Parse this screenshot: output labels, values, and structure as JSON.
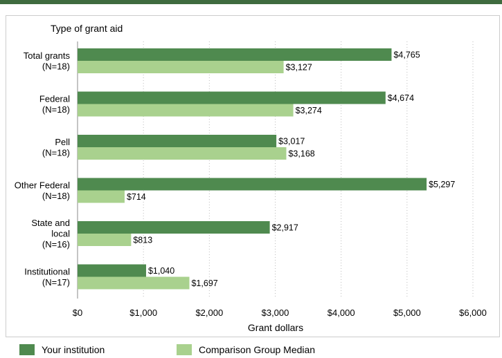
{
  "chart_data": {
    "type": "bar",
    "orientation": "horizontal",
    "title": "Type of grant aid",
    "xlabel": "Grant dollars",
    "xlim": [
      0,
      6000
    ],
    "xticks": [
      "$0",
      "$1,000",
      "$2,000",
      "$3,000",
      "$4,000",
      "$5,000",
      "$6,000"
    ],
    "xtick_values": [
      0,
      1000,
      2000,
      3000,
      4000,
      5000,
      6000
    ],
    "grid": "vertical dotted",
    "categories": [
      [
        "Total grants",
        "(N=18)"
      ],
      [
        "Federal",
        "(N=18)"
      ],
      [
        "Pell",
        "(N=18)"
      ],
      [
        "Other Federal",
        "(N=18)"
      ],
      [
        "State and",
        "local",
        "(N=16)"
      ],
      [
        "Institutional",
        "(N=17)"
      ]
    ],
    "series": [
      {
        "name": "Your institution",
        "color": "#4f8a4f",
        "values": [
          4765,
          4674,
          3017,
          5297,
          2917,
          1040
        ],
        "labels": [
          "$4,765",
          "$4,674",
          "$3,017",
          "$5,297",
          "$2,917",
          "$1,040"
        ]
      },
      {
        "name": "Comparison Group Median",
        "color": "#a9d18e",
        "values": [
          3127,
          3274,
          3168,
          714,
          813,
          1697
        ],
        "labels": [
          "$3,127",
          "$3,274",
          "$3,168",
          "$714",
          "$813",
          "$1,697"
        ]
      }
    ],
    "legend_position": "bottom"
  }
}
